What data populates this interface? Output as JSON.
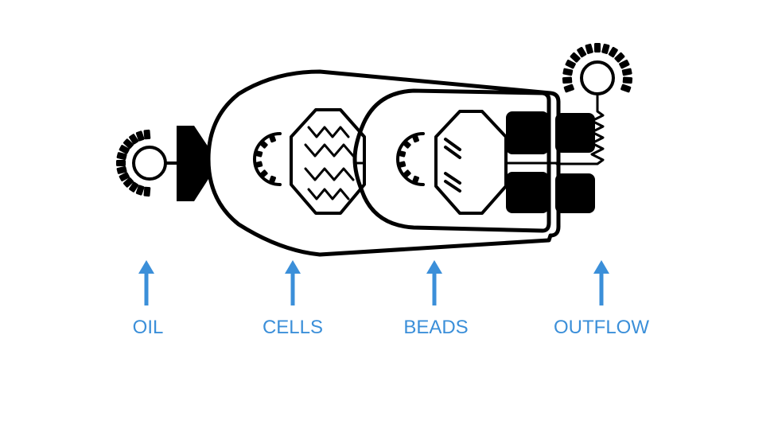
{
  "colors": {
    "channel": "#000000",
    "accent": "#3b8fd9",
    "background": "#ffffff"
  },
  "ports": [
    {
      "id": "oil",
      "label": "OIL"
    },
    {
      "id": "cells",
      "label": "CELLS"
    },
    {
      "id": "beads",
      "label": "BEADS"
    },
    {
      "id": "outflow",
      "label": "OUTFLOW"
    }
  ]
}
